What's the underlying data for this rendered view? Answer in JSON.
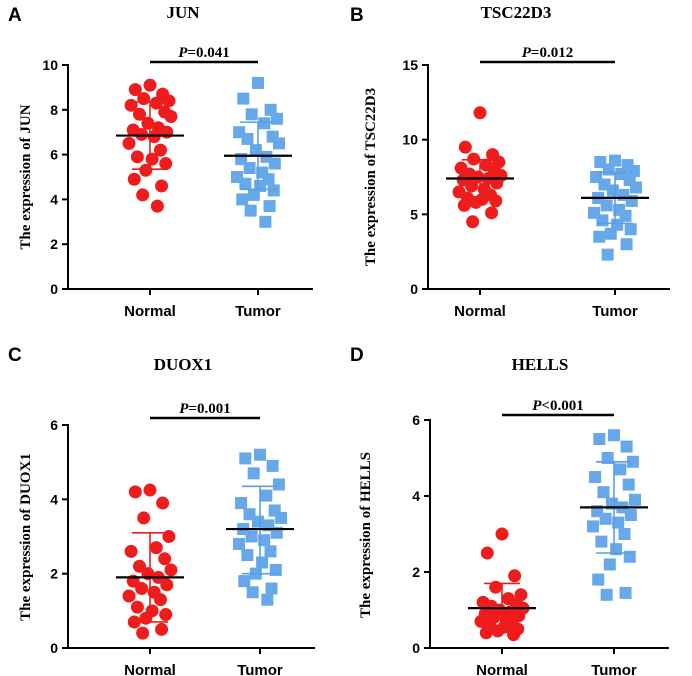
{
  "colors": {
    "normal": "#ee1c1c",
    "tumor": "#66a8ea",
    "tumor_bar": "#5b9fe2",
    "axis": "#000000"
  },
  "chart_data": [
    {
      "panel": "A",
      "type": "scatter",
      "title": "JUN",
      "ylabel": "The expression of JUN",
      "ylim": [
        0,
        10
      ],
      "yticks": [
        0,
        2,
        4,
        6,
        8,
        10
      ],
      "categories": [
        "Normal",
        "Tumor"
      ],
      "p_prefix": "P",
      "p_text": "=0.041",
      "series": [
        {
          "name": "Normal",
          "marker": "circle",
          "mean": 6.85,
          "sd_low": 5.35,
          "sd_high": 8.35,
          "values": [
            9.1,
            8.9,
            8.7,
            8.5,
            8.4,
            8.3,
            8.2,
            7.9,
            7.8,
            7.7,
            7.4,
            7.2,
            7.1,
            7.0,
            6.9,
            6.8,
            6.5,
            6.2,
            5.9,
            5.8,
            5.6,
            5.3,
            4.9,
            4.6,
            4.2,
            3.7
          ]
        },
        {
          "name": "Tumor",
          "marker": "square",
          "mean": 5.95,
          "sd_low": 4.45,
          "sd_high": 7.45,
          "values": [
            9.2,
            8.5,
            8.0,
            7.8,
            7.6,
            7.4,
            7.0,
            6.8,
            6.7,
            6.5,
            6.2,
            5.9,
            5.8,
            5.6,
            5.4,
            5.2,
            5.0,
            4.9,
            4.7,
            4.6,
            4.4,
            4.2,
            4.0,
            3.7,
            3.5,
            3.0
          ]
        }
      ]
    },
    {
      "panel": "B",
      "type": "scatter",
      "title": "TSC22D3",
      "ylabel": "The expression of TSC22D3",
      "ylim": [
        0,
        15
      ],
      "yticks": [
        0,
        5,
        10,
        15
      ],
      "categories": [
        "Normal",
        "Tumor"
      ],
      "p_prefix": "P",
      "p_text": "=0.012",
      "series": [
        {
          "name": "Normal",
          "marker": "circle",
          "mean": 7.4,
          "sd_low": 6.15,
          "sd_high": 8.65,
          "values": [
            11.8,
            9.5,
            9.0,
            8.7,
            8.5,
            8.3,
            8.1,
            7.9,
            7.7,
            7.6,
            7.5,
            7.4,
            7.3,
            7.1,
            6.9,
            6.7,
            6.5,
            6.3,
            6.1,
            6.0,
            5.9,
            5.8,
            5.6,
            5.1,
            4.5
          ]
        },
        {
          "name": "Tumor",
          "marker": "square",
          "mean": 6.1,
          "sd_low": 4.4,
          "sd_high": 7.8,
          "values": [
            8.6,
            8.5,
            8.3,
            8.0,
            7.9,
            7.7,
            7.5,
            7.3,
            7.0,
            6.8,
            6.6,
            6.3,
            6.1,
            5.9,
            5.6,
            5.3,
            5.1,
            4.9,
            4.6,
            4.3,
            4.0,
            3.7,
            3.5,
            3.0,
            2.3
          ]
        }
      ]
    },
    {
      "panel": "C",
      "type": "scatter",
      "title": "DUOX1",
      "ylabel": "The expression of DUOX1",
      "ylim": [
        0,
        6
      ],
      "yticks": [
        0,
        2,
        4,
        6
      ],
      "categories": [
        "Normal",
        "Tumor"
      ],
      "p_prefix": "P",
      "p_text": "=0.001",
      "series": [
        {
          "name": "Normal",
          "marker": "circle",
          "mean": 1.9,
          "sd_low": 0.7,
          "sd_high": 3.1,
          "values": [
            4.25,
            4.2,
            3.9,
            3.5,
            3.0,
            2.7,
            2.6,
            2.4,
            2.2,
            2.1,
            2.0,
            1.9,
            1.8,
            1.7,
            1.6,
            1.5,
            1.4,
            1.3,
            1.1,
            1.0,
            0.9,
            0.8,
            0.7,
            0.5,
            0.4
          ]
        },
        {
          "name": "Tumor",
          "marker": "square",
          "mean": 3.2,
          "sd_low": 2.0,
          "sd_high": 4.35,
          "values": [
            5.2,
            5.1,
            4.9,
            4.7,
            4.4,
            4.1,
            3.9,
            3.7,
            3.6,
            3.5,
            3.4,
            3.3,
            3.2,
            3.1,
            3.0,
            2.9,
            2.8,
            2.6,
            2.5,
            2.3,
            2.1,
            2.0,
            1.8,
            1.6,
            1.5,
            1.3
          ]
        }
      ]
    },
    {
      "panel": "D",
      "type": "scatter",
      "title": "HELLS",
      "ylabel": "The expression of HELLS",
      "ylim": [
        0,
        6
      ],
      "yticks": [
        0,
        2,
        4,
        6
      ],
      "categories": [
        "Normal",
        "Tumor"
      ],
      "p_prefix": "P",
      "p_text": "<0.001",
      "series": [
        {
          "name": "Normal",
          "marker": "circle",
          "mean": 1.05,
          "sd_low": 0.45,
          "sd_high": 1.7,
          "values": [
            3.0,
            2.5,
            1.9,
            1.6,
            1.4,
            1.3,
            1.2,
            1.15,
            1.1,
            1.05,
            1.0,
            0.95,
            0.9,
            0.85,
            0.8,
            0.75,
            0.7,
            0.65,
            0.6,
            0.55,
            0.5,
            0.45,
            0.4,
            0.35
          ]
        },
        {
          "name": "Tumor",
          "marker": "square",
          "mean": 3.7,
          "sd_low": 2.5,
          "sd_high": 4.9,
          "values": [
            5.6,
            5.5,
            5.3,
            5.0,
            4.9,
            4.7,
            4.5,
            4.3,
            4.1,
            3.9,
            3.8,
            3.7,
            3.6,
            3.5,
            3.4,
            3.3,
            3.2,
            3.0,
            2.8,
            2.6,
            2.4,
            2.2,
            1.8,
            1.45,
            1.4
          ]
        }
      ]
    }
  ]
}
